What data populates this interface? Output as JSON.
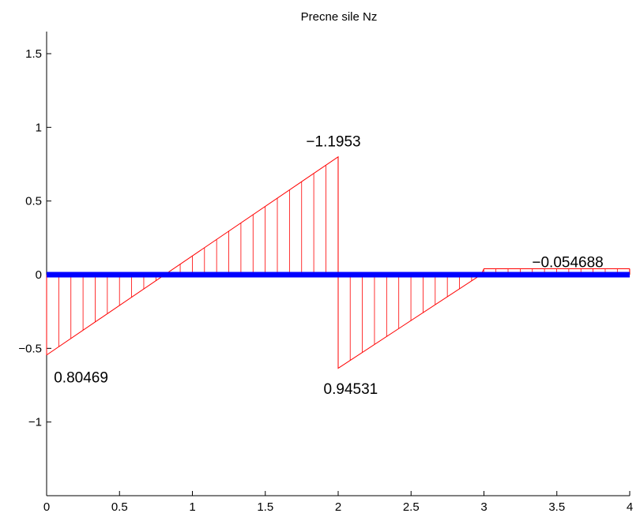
{
  "chart_data": {
    "type": "line",
    "title": "Precne sile Nz",
    "xlabel": "",
    "ylabel": "",
    "xlim": [
      0,
      4
    ],
    "ylim": [
      -1.5,
      1.65
    ],
    "x_ticks": [
      "0",
      "0.5",
      "1",
      "1.5",
      "2",
      "2.5",
      "3",
      "3.5",
      "4"
    ],
    "y_ticks": [
      "−1",
      "−0.5",
      "0",
      "0.5",
      "1",
      "1.5"
    ],
    "grid": false,
    "series": [
      {
        "values_xy": [
          [
            0,
            -0.545
          ],
          [
            2,
            0.8
          ],
          [
            2,
            -0.635
          ],
          [
            2.98,
            0.0
          ],
          [
            3.0,
            0.04
          ],
          [
            4,
            0.04
          ]
        ],
        "color": "#ff0000"
      }
    ],
    "beam": {
      "x": [
        0,
        4
      ],
      "y": 0,
      "color": "#0000ff"
    },
    "annotations": [
      {
        "text": "0.80469",
        "x": 0.05,
        "y": -0.73
      },
      {
        "text": "−1.1953",
        "x": 1.78,
        "y": 0.87
      },
      {
        "text": "0.94531",
        "x": 1.9,
        "y": -0.81
      },
      {
        "text": "−0.054688",
        "x": 3.33,
        "y": 0.05
      }
    ]
  }
}
